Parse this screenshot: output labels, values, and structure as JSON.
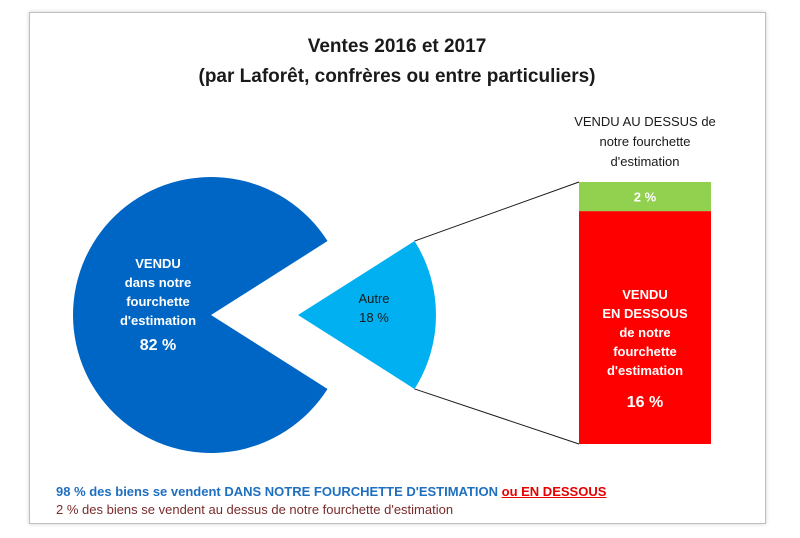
{
  "colors": {
    "dans": "#0066c6",
    "autre": "#00b0f0",
    "dessus": "#92d050",
    "dessous": "#ff0000",
    "footer_blue": "#1f6fc0",
    "footer_red": "#e60000",
    "footer_brown": "#7a2b2b"
  },
  "chart_data": {
    "type": "pie",
    "title": "Ventes 2016 et 2017",
    "subtitle": "(par Laforêt, confrères ou entre particuliers)",
    "slices": [
      {
        "name": "dans",
        "value": 82,
        "label_lines": [
          "VENDU",
          "dans notre",
          "fourchette",
          "d'estimation"
        ],
        "value_label": "82 %"
      },
      {
        "name": "autre",
        "value": 18,
        "label_lines": [
          "Autre",
          "18 %"
        ]
      }
    ],
    "breakdown": {
      "type": "stacked-bar",
      "segments": [
        {
          "name": "dessous",
          "value": 16,
          "label_lines": [
            "VENDU",
            "EN DESSOUS",
            "de notre",
            "fourchette",
            "d'estimation"
          ],
          "value_label": "16 %"
        },
        {
          "name": "dessus",
          "value": 2,
          "value_label": "2 %",
          "caption_lines": [
            "VENDU AU DESSUS de",
            "notre fourchette",
            "d'estimation"
          ]
        }
      ]
    }
  },
  "footer": {
    "line1_main": "98 % des biens se vendent DANS NOTRE FOURCHETTE D'ESTIMATION ",
    "line1_red": "ou EN DESSOUS",
    "line2": "2 % des biens se vendent au dessus de notre fourchette d'estimation"
  }
}
